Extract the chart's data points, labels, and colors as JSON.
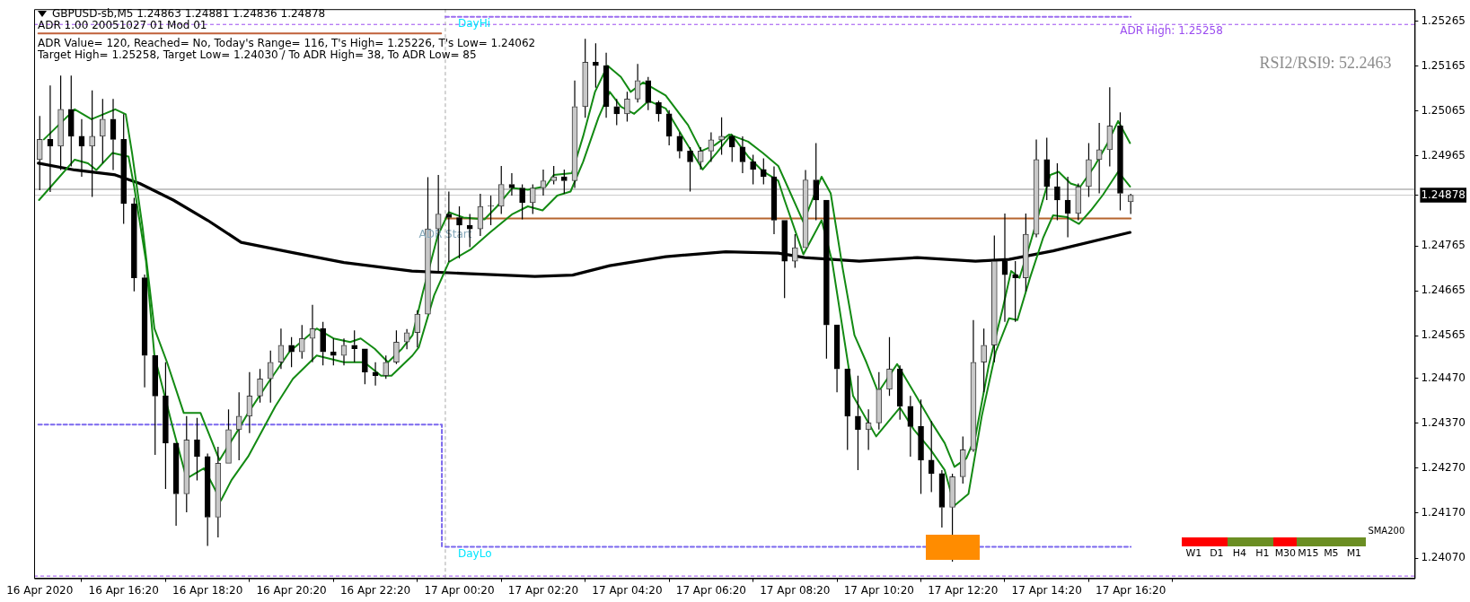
{
  "chart_data": {
    "type": "candlestick",
    "annotations": [
      "GBPUSD-sb,M5  1.24863 1.24881 1.24836 1.24878",
      "ADR 1.00 20051027 01 Mod 01",
      "ADR Value= 120, Reached= No, Today's Range= 116, T's High= 1.25226, T's Low= 1.24062",
      "Target High= 1.25258, Target Low= 1.24030 / To ADR High= 38, To ADR Low= 85",
      "RSI2/RSI9: 52.2463",
      {
        "text": "DayHi",
        "x": "2020-04-17T00:18",
        "y": 1.25275
      },
      {
        "text": "DayLo",
        "x": "2020-04-17T00:18",
        "y": 1.24095
      },
      {
        "text": "ADR Start",
        "x": "2020-04-17T00:00",
        "y": 1.24789
      },
      "W1",
      "D1",
      "H4",
      "H1",
      "M30",
      "M15",
      "M5",
      "M1",
      "SMA200"
    ],
    "x": [
      "2020-04-16T14:20",
      "2020-04-16T14:35",
      "2020-04-16T14:50",
      "2020-04-16T15:05",
      "2020-04-16T15:20",
      "2020-04-16T15:35",
      "2020-04-16T15:50",
      "2020-04-16T16:05",
      "2020-04-16T16:20",
      "2020-04-16T16:35",
      "2020-04-16T16:50",
      "2020-04-16T17:05",
      "2020-04-16T17:20",
      "2020-04-16T17:35",
      "2020-04-16T17:50",
      "2020-04-16T18:05",
      "2020-04-16T18:20",
      "2020-04-16T18:35",
      "2020-04-16T18:50",
      "2020-04-16T19:05",
      "2020-04-16T19:20",
      "2020-04-16T19:35",
      "2020-04-16T19:50",
      "2020-04-16T20:05",
      "2020-04-16T20:20",
      "2020-04-16T20:35",
      "2020-04-16T20:50",
      "2020-04-16T21:05",
      "2020-04-16T21:20",
      "2020-04-16T21:35",
      "2020-04-16T21:50",
      "2020-04-16T22:05",
      "2020-04-16T22:20",
      "2020-04-16T22:35",
      "2020-04-16T22:50",
      "2020-04-16T23:05",
      "2020-04-16T23:20",
      "2020-04-16T23:35",
      "2020-04-16T23:50",
      "2020-04-17T00:05",
      "2020-04-17T00:20",
      "2020-04-17T00:35",
      "2020-04-17T00:50",
      "2020-04-17T01:05",
      "2020-04-17T01:20",
      "2020-04-17T01:35",
      "2020-04-17T01:50",
      "2020-04-17T02:05",
      "2020-04-17T02:20",
      "2020-04-17T02:35",
      "2020-04-17T02:50",
      "2020-04-17T03:05",
      "2020-04-17T03:20",
      "2020-04-17T03:35",
      "2020-04-17T03:50",
      "2020-04-17T04:05",
      "2020-04-17T04:20",
      "2020-04-17T04:35",
      "2020-04-17T04:50",
      "2020-04-17T05:05",
      "2020-04-17T05:20",
      "2020-04-17T05:35",
      "2020-04-17T05:50",
      "2020-04-17T06:05",
      "2020-04-17T06:20",
      "2020-04-17T06:35",
      "2020-04-17T06:50",
      "2020-04-17T07:05",
      "2020-04-17T07:20",
      "2020-04-17T07:35",
      "2020-04-17T07:50",
      "2020-04-17T08:05",
      "2020-04-17T08:20",
      "2020-04-17T08:35",
      "2020-04-17T08:50",
      "2020-04-17T09:05",
      "2020-04-17T09:20",
      "2020-04-17T09:35",
      "2020-04-17T09:50",
      "2020-04-17T10:05",
      "2020-04-17T10:20",
      "2020-04-17T10:35",
      "2020-04-17T10:50",
      "2020-04-17T11:05",
      "2020-04-17T11:20",
      "2020-04-17T11:35",
      "2020-04-17T11:50",
      "2020-04-17T12:05",
      "2020-04-17T12:20",
      "2020-04-17T12:35",
      "2020-04-17T12:50",
      "2020-04-17T13:05",
      "2020-04-17T13:20",
      "2020-04-17T13:35",
      "2020-04-17T13:50",
      "2020-04-17T14:05",
      "2020-04-17T14:20",
      "2020-04-17T14:35",
      "2020-04-17T14:50",
      "2020-04-17T15:05",
      "2020-04-17T15:20",
      "2020-04-17T15:35",
      "2020-04-17T15:50",
      "2020-04-17T16:05",
      "2020-04-17T16:20"
    ],
    "ohlc": [
      [
        1.24957,
        1.25054,
        1.24889,
        1.25002
      ],
      [
        1.25002,
        1.25122,
        1.24885,
        1.24987
      ],
      [
        1.24987,
        1.25144,
        1.24934,
        1.25069
      ],
      [
        1.25069,
        1.25144,
        1.24942,
        1.25009
      ],
      [
        1.25009,
        1.25047,
        1.24919,
        1.24987
      ],
      [
        1.24987,
        1.25111,
        1.24874,
        1.25009
      ],
      [
        1.25009,
        1.25092,
        1.24949,
        1.25047
      ],
      [
        1.25047,
        1.25092,
        1.24934,
        1.25002
      ],
      [
        1.25002,
        1.25058,
        1.24814,
        1.24859
      ],
      [
        1.24859,
        1.24872,
        1.24664,
        1.24694
      ],
      [
        1.24694,
        1.24701,
        1.2445,
        1.24521
      ],
      [
        1.24521,
        1.24521,
        1.243,
        1.24431
      ],
      [
        1.24431,
        1.24506,
        1.24224,
        1.24326
      ],
      [
        1.24326,
        1.24326,
        1.24142,
        1.24213
      ],
      [
        1.24213,
        1.24386,
        1.24172,
        1.24333
      ],
      [
        1.24333,
        1.24382,
        1.24243,
        1.24296
      ],
      [
        1.24296,
        1.24303,
        1.24097,
        1.24161
      ],
      [
        1.24161,
        1.24318,
        1.24116,
        1.24281
      ],
      [
        1.24281,
        1.24401,
        1.24281,
        1.24356
      ],
      [
        1.24356,
        1.24439,
        1.24288,
        1.24386
      ],
      [
        1.24386,
        1.24484,
        1.24348,
        1.24431
      ],
      [
        1.24431,
        1.24491,
        1.24416,
        1.24469
      ],
      [
        1.24469,
        1.24532,
        1.24416,
        1.24506
      ],
      [
        1.24506,
        1.24581,
        1.24491,
        1.24544
      ],
      [
        1.24544,
        1.24562,
        1.24495,
        1.24529
      ],
      [
        1.24529,
        1.24589,
        1.24514,
        1.24559
      ],
      [
        1.24559,
        1.24634,
        1.24506,
        1.24581
      ],
      [
        1.24581,
        1.24596,
        1.24499,
        1.24529
      ],
      [
        1.24529,
        1.24559,
        1.24499,
        1.24521
      ],
      [
        1.24521,
        1.24559,
        1.24499,
        1.24544
      ],
      [
        1.24544,
        1.24577,
        1.24506,
        1.24536
      ],
      [
        1.24536,
        1.24536,
        1.24457,
        1.24484
      ],
      [
        1.24484,
        1.24506,
        1.24454,
        1.24476
      ],
      [
        1.24476,
        1.24521,
        1.24469,
        1.24506
      ],
      [
        1.24506,
        1.24577,
        1.24502,
        1.24551
      ],
      [
        1.24551,
        1.2458,
        1.24535,
        1.24572
      ],
      [
        1.24572,
        1.24622,
        1.24539,
        1.24613
      ],
      [
        1.24613,
        1.24918,
        1.24613,
        1.24803
      ],
      [
        1.24803,
        1.24923,
        1.24704,
        1.24836
      ],
      [
        1.24836,
        1.24886,
        1.24729,
        1.24828
      ],
      [
        1.24828,
        1.24853,
        1.24737,
        1.24811
      ],
      [
        1.24811,
        1.24836,
        1.24762,
        1.24803
      ],
      [
        1.24803,
        1.24881,
        1.24787,
        1.24853
      ],
      [
        1.24853,
        1.24877,
        1.24811,
        1.24853
      ],
      [
        1.24853,
        1.24943,
        1.24836,
        1.24902
      ],
      [
        1.24902,
        1.24927,
        1.24877,
        1.24894
      ],
      [
        1.24894,
        1.24902,
        1.24824,
        1.24861
      ],
      [
        1.24861,
        1.24902,
        1.24836,
        1.24894
      ],
      [
        1.24894,
        1.24935,
        1.24877,
        1.2491
      ],
      [
        1.2491,
        1.24943,
        1.24902,
        1.24919
      ],
      [
        1.24919,
        1.24935,
        1.24881,
        1.2491
      ],
      [
        1.2491,
        1.25133,
        1.24894,
        1.25075
      ],
      [
        1.25075,
        1.25226,
        1.2505,
        1.25174
      ],
      [
        1.25174,
        1.25216,
        1.25117,
        1.25166
      ],
      [
        1.25166,
        1.25195,
        1.2505,
        1.25075
      ],
      [
        1.25075,
        1.25092,
        1.25034,
        1.25059
      ],
      [
        1.25059,
        1.25108,
        1.25042,
        1.25092
      ],
      [
        1.25092,
        1.2517,
        1.25084,
        1.25133
      ],
      [
        1.25133,
        1.25141,
        1.25067,
        1.25084
      ],
      [
        1.25084,
        1.25088,
        1.25042,
        1.25059
      ],
      [
        1.25059,
        1.25067,
        1.24989,
        1.25009
      ],
      [
        1.25009,
        1.25018,
        1.2496,
        1.24976
      ],
      [
        1.24976,
        1.24985,
        1.24886,
        1.24952
      ],
      [
        1.24952,
        1.24985,
        1.24935,
        1.24976
      ],
      [
        1.24976,
        1.25018,
        1.24952,
        1.25001
      ],
      [
        1.25001,
        1.25051,
        1.24968,
        1.25009
      ],
      [
        1.25009,
        1.25013,
        1.24952,
        1.24985
      ],
      [
        1.24985,
        1.25009,
        1.24927,
        1.24952
      ],
      [
        1.24952,
        1.24968,
        1.24902,
        1.24935
      ],
      [
        1.24935,
        1.2496,
        1.24902,
        1.24919
      ],
      [
        1.24919,
        1.24942,
        1.24791,
        1.24822
      ],
      [
        1.24822,
        1.24822,
        1.24649,
        1.24731
      ],
      [
        1.24731,
        1.24791,
        1.24716,
        1.24761
      ],
      [
        1.24761,
        1.24934,
        1.24761,
        1.24912
      ],
      [
        1.24912,
        1.24994,
        1.24822,
        1.24867
      ],
      [
        1.24867,
        1.24867,
        1.24514,
        1.24589
      ],
      [
        1.24589,
        1.24589,
        1.24439,
        1.24491
      ],
      [
        1.24491,
        1.24491,
        1.24311,
        1.24386
      ],
      [
        1.24386,
        1.24476,
        1.24266,
        1.24356
      ],
      [
        1.24356,
        1.24401,
        1.24311,
        1.24371
      ],
      [
        1.24371,
        1.24484,
        1.24356,
        1.24446
      ],
      [
        1.24446,
        1.24562,
        1.24431,
        1.24491
      ],
      [
        1.24491,
        1.24499,
        1.24378,
        1.24408
      ],
      [
        1.24408,
        1.24431,
        1.24296,
        1.24363
      ],
      [
        1.24363,
        1.24423,
        1.24213,
        1.24288
      ],
      [
        1.24288,
        1.24375,
        1.24217,
        1.24258
      ],
      [
        1.24258,
        1.24266,
        1.24138,
        1.24183
      ],
      [
        1.24183,
        1.24258,
        1.24062,
        1.24251
      ],
      [
        1.24251,
        1.24341,
        1.24236,
        1.24311
      ],
      [
        1.24311,
        1.246,
        1.24307,
        1.24506
      ],
      [
        1.24506,
        1.24581,
        1.24439,
        1.24544
      ],
      [
        1.24544,
        1.24788,
        1.24506,
        1.24731
      ],
      [
        1.24731,
        1.24837,
        1.24596,
        1.24701
      ],
      [
        1.24701,
        1.24731,
        1.24596,
        1.24694
      ],
      [
        1.24694,
        1.24837,
        1.24664,
        1.24791
      ],
      [
        1.24791,
        1.25002,
        1.24784,
        1.24957
      ],
      [
        1.24957,
        1.25006,
        1.24867,
        1.24897
      ],
      [
        1.24897,
        1.24949,
        1.24822,
        1.24867
      ],
      [
        1.24867,
        1.24919,
        1.24784,
        1.24837
      ],
      [
        1.24837,
        1.24904,
        1.24822,
        1.24897
      ],
      [
        1.24897,
        1.24994,
        1.24874,
        1.24957
      ],
      [
        1.24957,
        1.25039,
        1.24882,
        1.24979
      ],
      [
        1.24979,
        1.25118,
        1.24942,
        1.25032
      ],
      [
        1.25032,
        1.25062,
        1.24844,
        1.24882
      ],
      [
        1.24863,
        1.24881,
        1.24836,
        1.24878
      ]
    ],
    "series": [
      {
        "type": "line",
        "color": "#138a13",
        "x": [
          "2020-04-16T14:26",
          "2020-04-16T15:10",
          "2020-04-16T15:34",
          "2020-04-16T16:08",
          "2020-04-16T16:23",
          "2020-04-16T16:32",
          "2020-04-16T16:47",
          "2020-04-16T17:04",
          "2020-04-16T17:22",
          "2020-04-16T17:46",
          "2020-04-16T18:10",
          "2020-04-16T18:37",
          "2020-04-16T19:04",
          "2020-04-16T19:18",
          "2020-04-16T19:47",
          "2020-04-16T20:17",
          "2020-04-16T20:56",
          "2020-04-16T21:20",
          "2020-04-16T21:44",
          "2020-04-16T21:59",
          "2020-04-16T22:19",
          "2020-04-16T22:38",
          "2020-04-16T22:58",
          "2020-04-16T23:13",
          "2020-04-16T23:28",
          "2020-04-16T23:49",
          "2020-04-17T00:05",
          "2020-04-17T00:26",
          "2020-04-17T00:56",
          "2020-04-17T01:14",
          "2020-04-17T01:36",
          "2020-04-17T01:58",
          "2020-04-17T02:24",
          "2020-04-17T02:35",
          "2020-04-17T03:01",
          "2020-04-17T03:17",
          "2020-04-17T03:34",
          "2020-04-17T03:52",
          "2020-04-17T04:11",
          "2020-04-17T04:25",
          "2020-04-17T04:43",
          "2020-04-17T05:15",
          "2020-04-17T05:47",
          "2020-04-17T06:06",
          "2020-04-17T06:25",
          "2020-04-17T06:46",
          "2020-04-17T07:13",
          "2020-04-17T07:34",
          "2020-04-17T07:56",
          "2020-04-17T08:05",
          "2020-04-17T08:32",
          "2020-04-17T08:58",
          "2020-04-17T09:11",
          "2020-04-17T09:28",
          "2020-04-17T09:45",
          "2020-04-17T10:02",
          "2020-04-17T10:19",
          "2020-04-17T10:46",
          "2020-04-17T11:10",
          "2020-04-17T11:34",
          "2020-04-17T11:54",
          "2020-04-17T12:08",
          "2020-04-17T12:25",
          "2020-04-17T12:38",
          "2020-04-17T12:57",
          "2020-04-17T13:17",
          "2020-04-17T13:29",
          "2020-04-17T13:41",
          "2020-04-17T13:56",
          "2020-04-17T14:10",
          "2020-04-17T14:25",
          "2020-04-17T14:37",
          "2020-04-17T14:54",
          "2020-04-17T15:08",
          "2020-04-17T15:28",
          "2020-04-17T15:47",
          "2020-04-17T16:02",
          "2020-04-17T16:19"
        ],
        "values": [
          1.25002,
          1.25069,
          1.25047,
          1.25069,
          1.25058,
          1.24972,
          1.24807,
          1.24581,
          1.24506,
          1.24393,
          1.24393,
          1.24288,
          1.24356,
          1.24393,
          1.24461,
          1.24529,
          1.24581,
          1.24559,
          1.24551,
          1.24559,
          1.24536,
          1.24506,
          1.24536,
          1.24566,
          1.24663,
          1.24787,
          1.2484,
          1.24828,
          1.24824,
          1.24853,
          1.24894,
          1.2489,
          1.24898,
          1.24923,
          1.24927,
          1.25009,
          1.25108,
          1.25166,
          1.25141,
          1.25108,
          1.25129,
          1.251,
          1.25034,
          1.24976,
          1.24989,
          1.25013,
          1.24997,
          1.24972,
          1.24943,
          1.24912,
          1.24818,
          1.24919,
          1.24882,
          1.24716,
          1.24566,
          1.24506,
          1.24439,
          1.24502,
          1.24439,
          1.24375,
          1.24326,
          1.24273,
          1.24292,
          1.24341,
          1.24499,
          1.24626,
          1.24709,
          1.24694,
          1.24769,
          1.24844,
          1.24923,
          1.2493,
          1.24904,
          1.24897,
          1.24942,
          1.24994,
          1.25043,
          1.24994
        ]
      },
      {
        "type": "line",
        "color": "#138a13",
        "x": [
          "2020-04-16T14:19",
          "2020-04-16T14:36",
          "2020-04-16T15:10",
          "2020-04-16T15:29",
          "2020-04-16T15:41",
          "2020-04-16T16:04",
          "2020-04-16T16:27",
          "2020-04-16T16:35",
          "2020-04-16T16:52",
          "2020-04-16T17:04",
          "2020-04-16T17:31",
          "2020-04-16T17:50",
          "2020-04-16T18:15",
          "2020-04-16T18:39",
          "2020-04-16T18:54",
          "2020-04-16T19:18",
          "2020-04-16T19:57",
          "2020-04-16T20:22",
          "2020-04-16T20:56",
          "2020-04-16T21:35",
          "2020-04-16T22:04",
          "2020-04-16T22:28",
          "2020-04-16T22:43",
          "2020-04-16T23:13",
          "2020-04-16T23:22",
          "2020-04-16T23:44",
          "2020-04-17T00:05",
          "2020-04-17T00:37",
          "2020-04-17T01:04",
          "2020-04-17T01:36",
          "2020-04-17T01:58",
          "2020-04-17T02:19",
          "2020-04-17T02:40",
          "2020-04-17T02:59",
          "2020-04-17T03:17",
          "2020-04-17T03:39",
          "2020-04-17T03:55",
          "2020-04-17T04:11",
          "2020-04-17T04:30",
          "2020-04-17T04:51",
          "2020-04-17T05:15",
          "2020-04-17T05:42",
          "2020-04-17T06:08",
          "2020-04-17T06:28",
          "2020-04-17T06:49",
          "2020-04-17T07:13",
          "2020-04-17T07:34",
          "2020-04-17T07:56",
          "2020-04-17T08:05",
          "2020-04-17T08:32",
          "2020-04-17T08:58",
          "2020-04-17T09:13",
          "2020-04-17T09:43",
          "2020-04-17T10:16",
          "2020-04-17T10:50",
          "2020-04-17T11:10",
          "2020-04-17T11:34",
          "2020-04-17T11:54",
          "2020-04-17T12:08",
          "2020-04-17T12:28",
          "2020-04-17T12:47",
          "2020-04-17T13:07",
          "2020-04-17T13:26",
          "2020-04-17T13:38",
          "2020-04-17T13:56",
          "2020-04-17T14:15",
          "2020-04-17T14:29",
          "2020-04-17T14:49",
          "2020-04-17T15:06",
          "2020-04-17T15:23",
          "2020-04-17T15:40",
          "2020-04-17T16:02",
          "2020-04-17T16:19"
        ],
        "values": [
          1.24867,
          1.24897,
          1.24957,
          1.24949,
          1.24934,
          1.24972,
          1.24964,
          1.24897,
          1.24731,
          1.24521,
          1.24356,
          1.24247,
          1.2427,
          1.24198,
          1.24243,
          1.24296,
          1.24408,
          1.24469,
          1.24521,
          1.24506,
          1.24506,
          1.24476,
          1.24476,
          1.24521,
          1.24539,
          1.24655,
          1.24729,
          1.24758,
          1.24795,
          1.24836,
          1.24853,
          1.24844,
          1.24877,
          1.24886,
          1.24952,
          1.25051,
          1.25108,
          1.25075,
          1.25059,
          1.25088,
          1.25071,
          1.25001,
          1.24935,
          1.24972,
          1.25013,
          1.24964,
          1.24931,
          1.2491,
          1.24867,
          1.24746,
          1.24822,
          1.24731,
          1.24431,
          1.24341,
          1.24405,
          1.24356,
          1.24311,
          1.24266,
          1.24187,
          1.24213,
          1.24386,
          1.24529,
          1.24604,
          1.246,
          1.24694,
          1.24784,
          1.24833,
          1.24829,
          1.24814,
          1.24844,
          1.24878,
          1.2493,
          1.24897
        ]
      },
      {
        "type": "line",
        "color": "#000000",
        "x": [
          "2020-04-16T14:18",
          "2020-04-16T15:10",
          "2020-04-16T16:08",
          "2020-04-16T16:43",
          "2020-04-16T17:31",
          "2020-04-16T18:20",
          "2020-04-16T19:08",
          "2020-04-16T20:22",
          "2020-04-16T21:35",
          "2020-04-16T23:12",
          "2020-04-17T00:21",
          "2020-04-17T02:08",
          "2020-04-17T03:02",
          "2020-04-17T03:55",
          "2020-04-17T05:15",
          "2020-04-17T06:41",
          "2020-04-17T07:56",
          "2020-04-17T08:34",
          "2020-04-17T09:52",
          "2020-04-17T11:15",
          "2020-04-17T12:38",
          "2020-04-17T13:26",
          "2020-04-17T14:29",
          "2020-04-17T16:19"
        ],
        "values": [
          1.24949,
          1.24934,
          1.24923,
          1.24904,
          1.24867,
          1.24822,
          1.24773,
          1.2475,
          1.24728,
          1.24709,
          1.24704,
          1.24697,
          1.247,
          1.24721,
          1.24741,
          1.24752,
          1.24749,
          1.24739,
          1.24731,
          1.24739,
          1.24731,
          1.24735,
          1.24754,
          1.24795
        ]
      },
      {
        "type": "line",
        "color": "#c0603a",
        "x": [
          "2020-04-16T14:18",
          "2020-04-16T23:54"
        ],
        "values": [
          1.25238,
          1.25238
        ]
      },
      {
        "type": "line",
        "color": "#7b68ee",
        "line_style": "dashed",
        "x": [
          "2020-04-16T14:18",
          "2020-04-16T23:55",
          "2020-04-16T23:55"
        ],
        "values": [
          1.24367,
          1.24367,
          1.24095
        ]
      },
      {
        "type": "line",
        "color": "#9b6cf0",
        "line_style": "dashed",
        "x": [
          "2020-04-17T00:00",
          "2020-04-17T16:20"
        ],
        "values": [
          1.25275,
          1.25275
        ]
      },
      {
        "type": "line",
        "color": "#7b68ee",
        "line_style": "dashed",
        "x": [
          "2020-04-17T00:00",
          "2020-04-17T16:20"
        ],
        "values": [
          1.24095,
          1.24095
        ]
      },
      {
        "type": "line",
        "color": "#b5652e",
        "x": [
          "2020-04-17T00:00",
          "2020-04-17T16:20"
        ],
        "values": [
          1.24826,
          1.24826
        ]
      }
    ],
    "ref_lines": [
      {
        "axis": "y",
        "value": 1.25258,
        "label": "ADR High: 1.25258",
        "color": "#9b4cf0",
        "line_style": "dashed"
      },
      {
        "axis": "y",
        "value": 1.2403,
        "color": "#9b4cf0",
        "line_style": "dashed"
      },
      {
        "axis": "y",
        "value": 1.24891,
        "color": "#8c8c8c"
      },
      {
        "axis": "y",
        "value": 1.24878,
        "color": "#cccccc"
      },
      {
        "axis": "x",
        "value": "2020-04-17T00:00",
        "color": "#a8a8a8",
        "line_style": "dashed"
      }
    ],
    "xlim": [
      "2020-04-16T14:12",
      "2020-04-17T23:06"
    ],
    "ylim": [
      1.24025,
      1.25292
    ],
    "xticks": [
      {
        "value": "2020-04-16T14:20",
        "label": "16 Apr 2020"
      },
      {
        "value": "2020-04-16T16:20",
        "label": "16 Apr 16:20"
      },
      {
        "value": "2020-04-16T18:20",
        "label": "16 Apr 18:20"
      },
      {
        "value": "2020-04-16T20:20",
        "label": "16 Apr 20:20"
      },
      {
        "value": "2020-04-16T22:20",
        "label": "16 Apr 22:20"
      },
      {
        "value": "2020-04-17T00:20",
        "label": "17 Apr 00:20"
      },
      {
        "value": "2020-04-17T02:20",
        "label": "17 Apr 02:20"
      },
      {
        "value": "2020-04-17T04:20",
        "label": "17 Apr 04:20"
      },
      {
        "value": "2020-04-17T06:20",
        "label": "17 Apr 06:20"
      },
      {
        "value": "2020-04-17T08:20",
        "label": "17 Apr 08:20"
      },
      {
        "value": "2020-04-17T10:20",
        "label": "17 Apr 10:20"
      },
      {
        "value": "2020-04-17T12:20",
        "label": "17 Apr 12:20"
      },
      {
        "value": "2020-04-17T14:20",
        "label": "17 Apr 14:20"
      },
      {
        "value": "2020-04-17T16:20",
        "label": "17 Apr 16:20"
      }
    ],
    "yticks": [
      {
        "value": 1.2407,
        "label": "1.24070"
      },
      {
        "value": 1.2417,
        "label": "1.24170"
      },
      {
        "value": 1.2427,
        "label": "1.24270"
      },
      {
        "value": 1.2437,
        "label": "1.24370"
      },
      {
        "value": 1.2447,
        "label": "1.24470"
      },
      1.24565,
      1.24665,
      1.24765,
      1.24878,
      1.24965,
      1.25065,
      1.25165,
      1.25265
    ],
    "legend": false,
    "marker": "none"
  }
}
